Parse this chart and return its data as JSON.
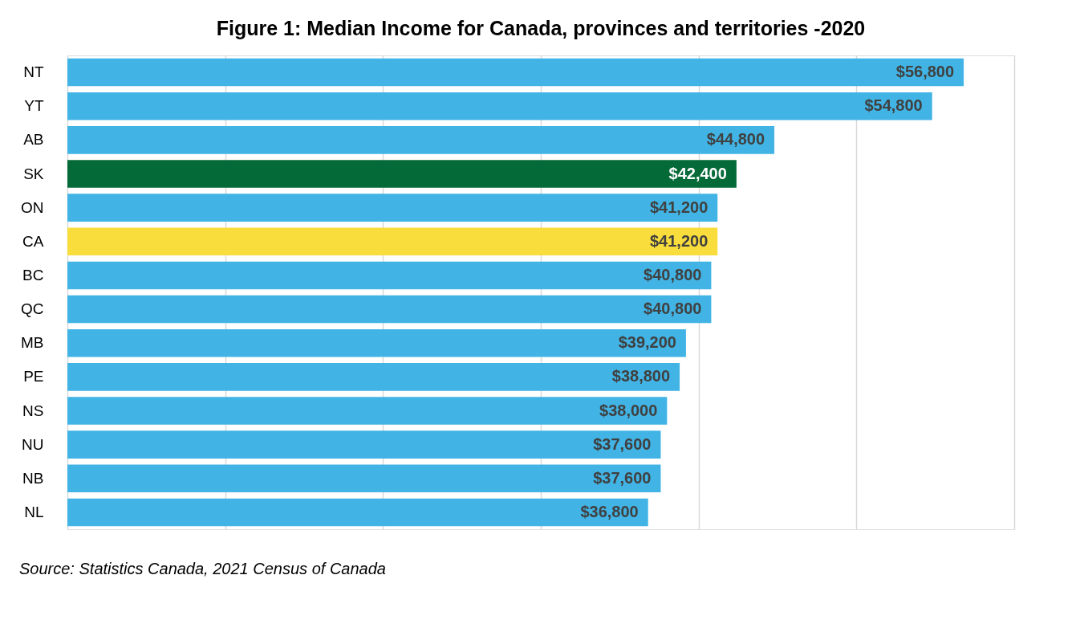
{
  "chart_data": {
    "type": "bar",
    "orientation": "horizontal",
    "title": "Figure 1: Median Income for Canada, provinces and territories -2020",
    "categories": [
      "NT",
      "YT",
      "AB",
      "SK",
      "ON",
      "CA",
      "BC",
      "QC",
      "MB",
      "PE",
      "NS",
      "NU",
      "NB",
      "NL"
    ],
    "values": [
      56800,
      54800,
      44800,
      42400,
      41200,
      41200,
      40800,
      40800,
      39200,
      38800,
      38000,
      37600,
      37600,
      36800
    ],
    "value_labels": [
      "$56,800",
      "$54,800",
      "$44,800",
      "$42,400",
      "$41,200",
      "$41,200",
      "$40,800",
      "$40,800",
      "$39,200",
      "$38,800",
      "$38,000",
      "$37,600",
      "$37,600",
      "$36,800"
    ],
    "colors": [
      "#41b4e5",
      "#41b4e5",
      "#41b4e5",
      "#046a38",
      "#41b4e5",
      "#f9dd3c",
      "#41b4e5",
      "#41b4e5",
      "#41b4e5",
      "#41b4e5",
      "#41b4e5",
      "#41b4e5",
      "#41b4e5",
      "#41b4e5"
    ],
    "xlim": [
      0,
      60000
    ],
    "xticks": [
      {
        "value": 0,
        "label": null
      },
      {
        "value": 10000,
        "label": null
      },
      {
        "value": 20000,
        "label": null
      },
      {
        "value": 30000,
        "label": null
      },
      {
        "value": 40000,
        "label": null
      },
      {
        "value": 50000,
        "label": null
      },
      {
        "value": 60000,
        "label": null
      }
    ],
    "tick_labels": "y",
    "grid": "x",
    "legend": false,
    "annotations": [
      "Source:  Statistics Canada, 2021 Census of Canada"
    ]
  }
}
